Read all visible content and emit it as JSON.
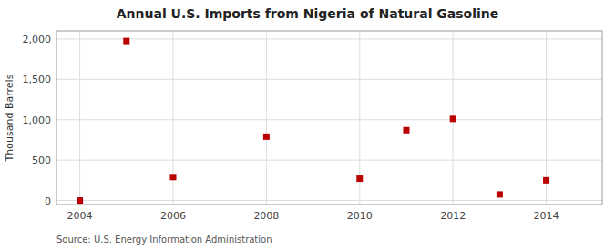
{
  "chart_data": {
    "type": "scatter",
    "title": "Annual U.S. Imports from Nigeria of Natural Gasoline",
    "y_label": "Thousand Barrels",
    "source": "Source: U.S. Energy Information Administration",
    "x": [
      2004,
      2005,
      2006,
      2008,
      2010,
      2011,
      2012,
      2013,
      2014
    ],
    "values": [
      0,
      1975,
      290,
      790,
      270,
      870,
      1010,
      75,
      250
    ],
    "color": "#bb0000",
    "marker": "square",
    "xlim": [
      2003.5,
      2015.2
    ],
    "ylim": [
      -50,
      2100
    ],
    "xticks": [
      2004,
      2006,
      2008,
      2010,
      2012,
      2014
    ],
    "yticks": [
      0,
      500,
      {
        "value": 1000,
        "label": "1,000"
      },
      {
        "value": 1500,
        "label": "1,500"
      },
      {
        "value": 2000,
        "label": "2,000"
      }
    ],
    "grid": true
  }
}
